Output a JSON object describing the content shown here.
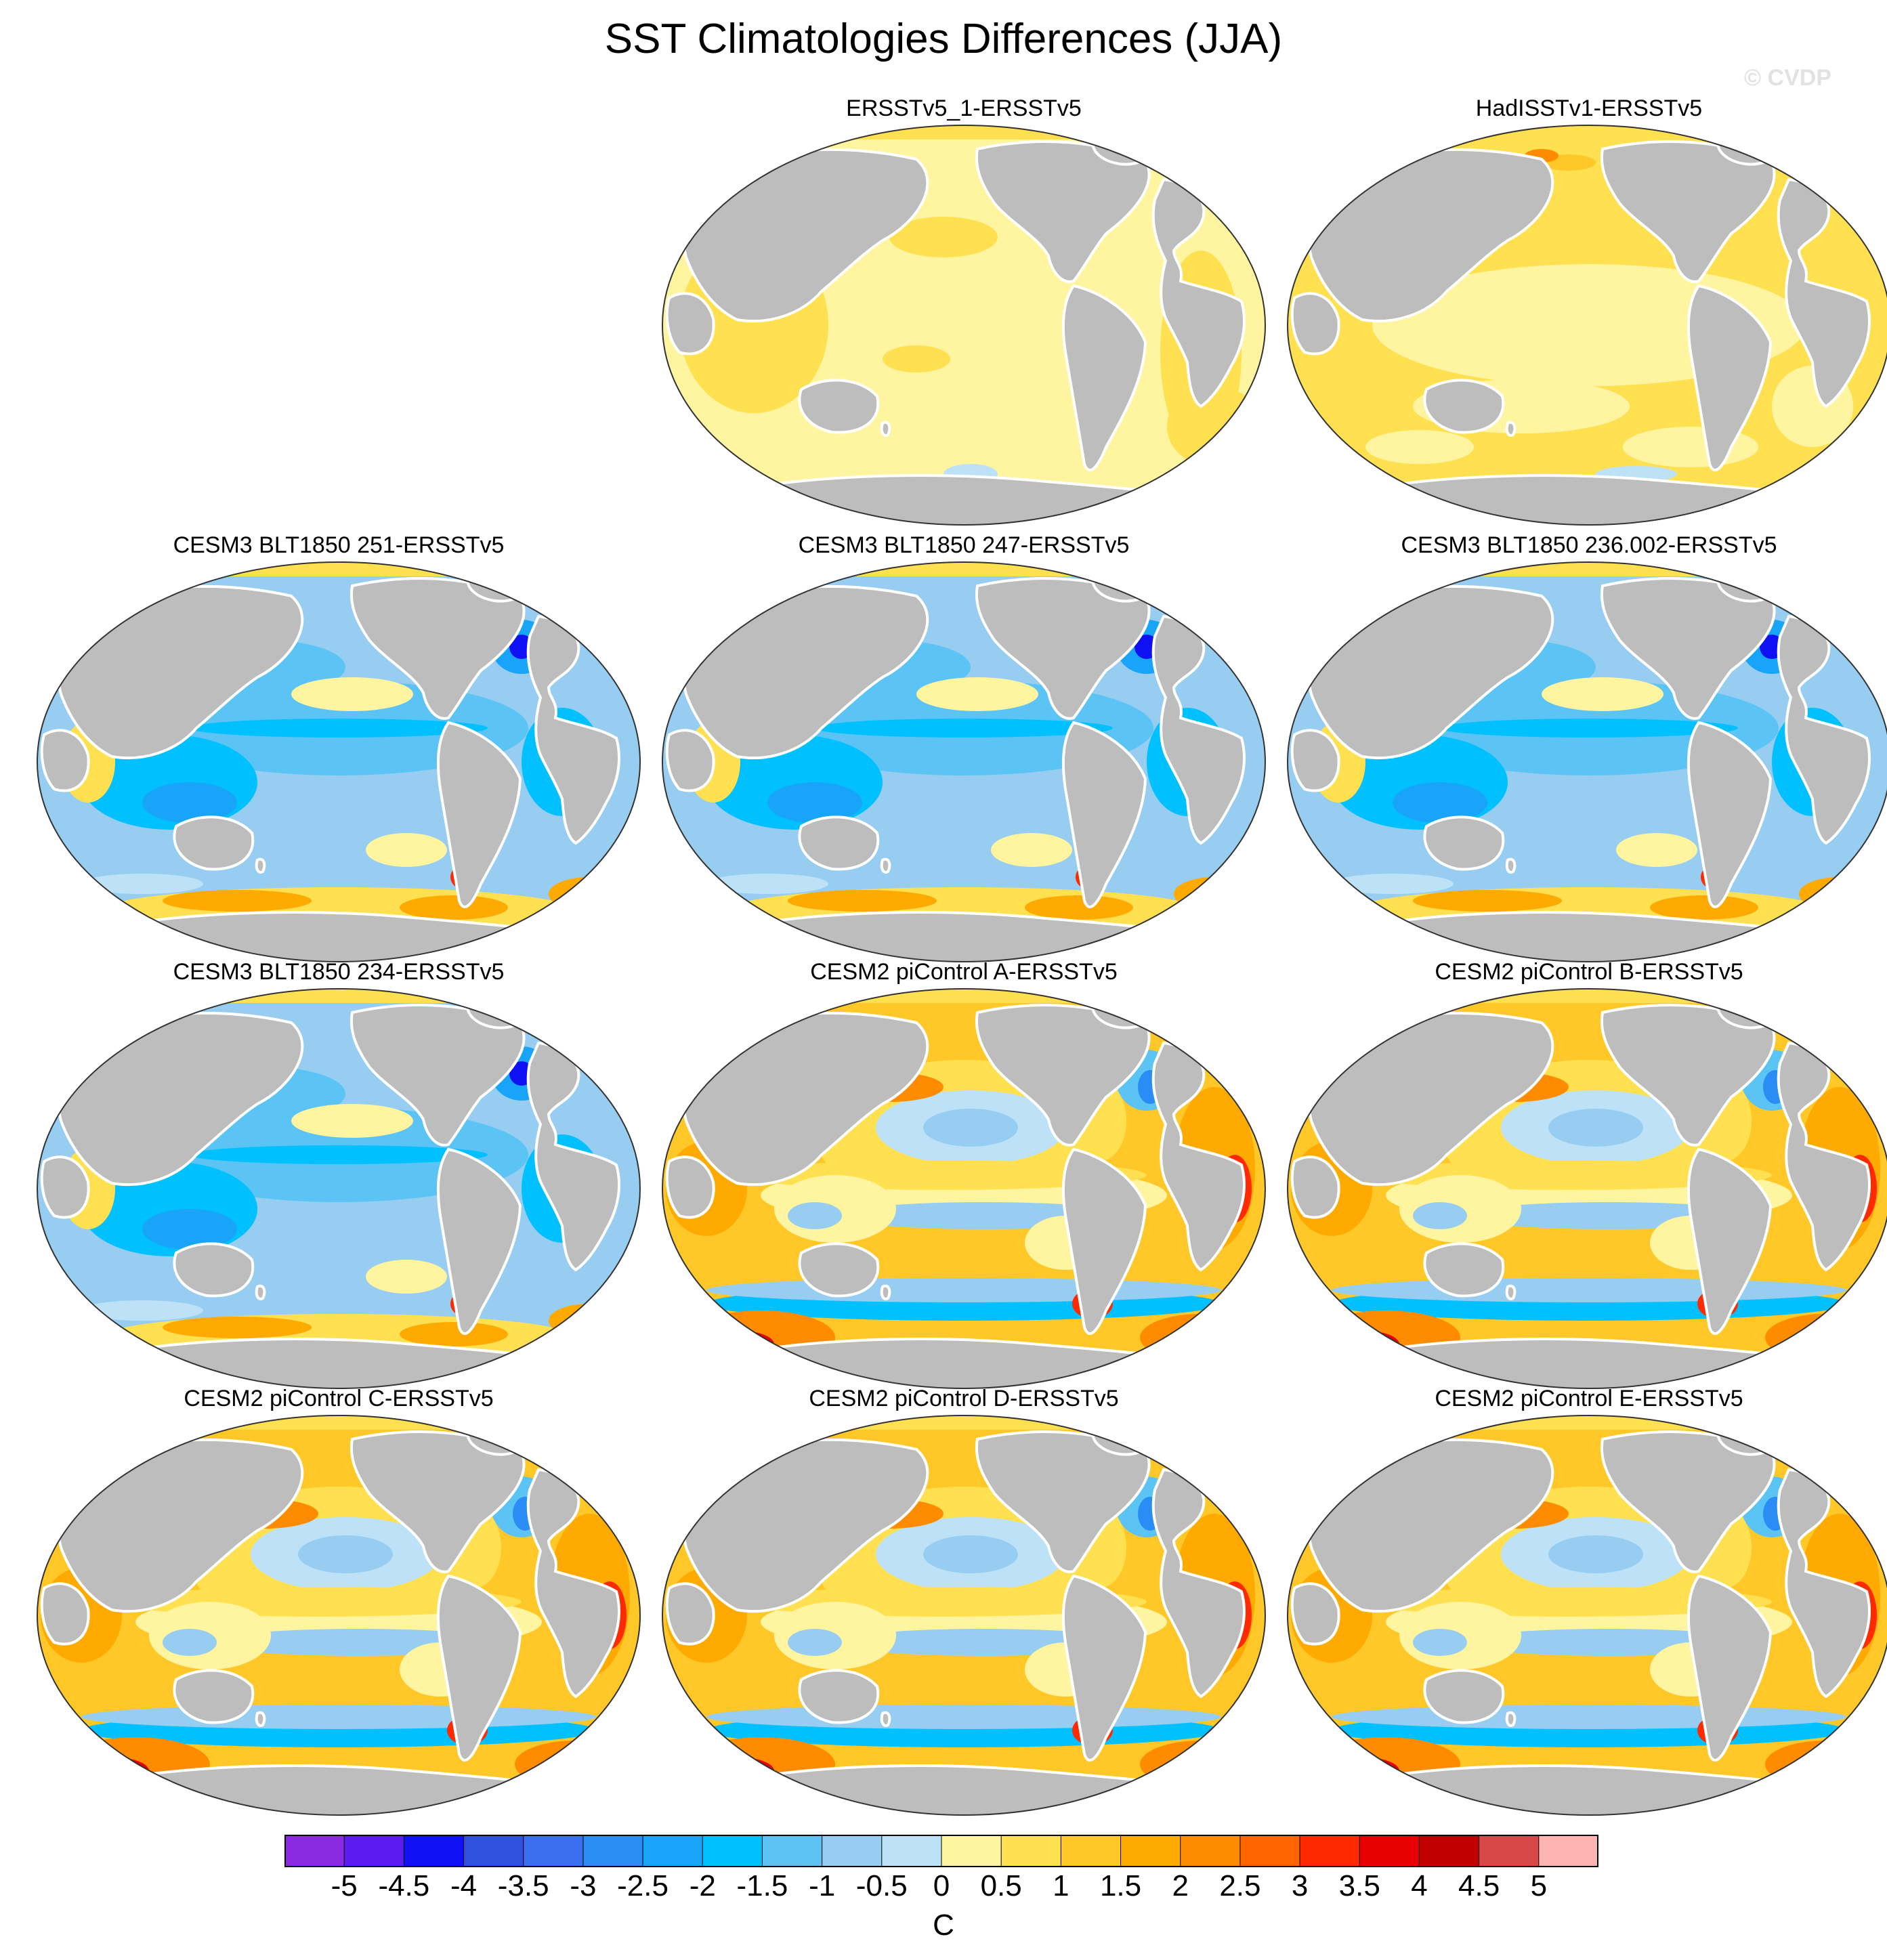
{
  "title": "SST Climatologies Differences (JJA)",
  "watermark": "© CVDP",
  "colors": {
    "land": "#bdbdbd",
    "coast": "#ffffff",
    "outline": "#333333"
  },
  "panels": [
    {
      "title": "ERSSTv5_1-ERSSTv5",
      "row": 0,
      "col": 1,
      "pattern": "obs-small"
    },
    {
      "title": "HadISSTv1-ERSSTv5",
      "row": 0,
      "col": 2,
      "pattern": "obs-warm"
    },
    {
      "title": "CESM3 BLT1850 251-ERSSTv5",
      "row": 1,
      "col": 0,
      "pattern": "cold"
    },
    {
      "title": "CESM3 BLT1850 247-ERSSTv5",
      "row": 1,
      "col": 1,
      "pattern": "cold"
    },
    {
      "title": "CESM3 BLT1850 236.002-ERSSTv5",
      "row": 1,
      "col": 2,
      "pattern": "cold"
    },
    {
      "title": "CESM3 BLT1850 234-ERSSTv5",
      "row": 2,
      "col": 0,
      "pattern": "cold"
    },
    {
      "title": "CESM2 piControl A-ERSSTv5",
      "row": 2,
      "col": 1,
      "pattern": "warm"
    },
    {
      "title": "CESM2 piControl B-ERSSTv5",
      "row": 2,
      "col": 2,
      "pattern": "warm"
    },
    {
      "title": "CESM2 piControl C-ERSSTv5",
      "row": 3,
      "col": 0,
      "pattern": "warm"
    },
    {
      "title": "CESM2 piControl D-ERSSTv5",
      "row": 3,
      "col": 1,
      "pattern": "warm"
    },
    {
      "title": "CESM2 piControl E-ERSSTv5",
      "row": 3,
      "col": 2,
      "pattern": "warm"
    }
  ],
  "colorbar": {
    "unit": "C",
    "ticks": [
      "-5",
      "-4.5",
      "-4",
      "-3.5",
      "-3",
      "-2.5",
      "-2",
      "-1.5",
      "-1",
      "-0.5",
      "0",
      "0.5",
      "1",
      "1.5",
      "2",
      "2.5",
      "3",
      "3.5",
      "4",
      "4.5",
      "5"
    ],
    "colors": [
      "#8a2be2",
      "#5a1cf0",
      "#1010f5",
      "#3050e0",
      "#3c6ef0",
      "#2a8cf5",
      "#18a4f8",
      "#00c0ff",
      "#5cc4f5",
      "#96cdf0",
      "#bde2f7",
      "#fff5a0",
      "#ffe050",
      "#ffc828",
      "#ffaa00",
      "#ff8c00",
      "#ff6400",
      "#ff2a00",
      "#e80000",
      "#c00000",
      "#d94848",
      "#ffb4b4"
    ]
  }
}
